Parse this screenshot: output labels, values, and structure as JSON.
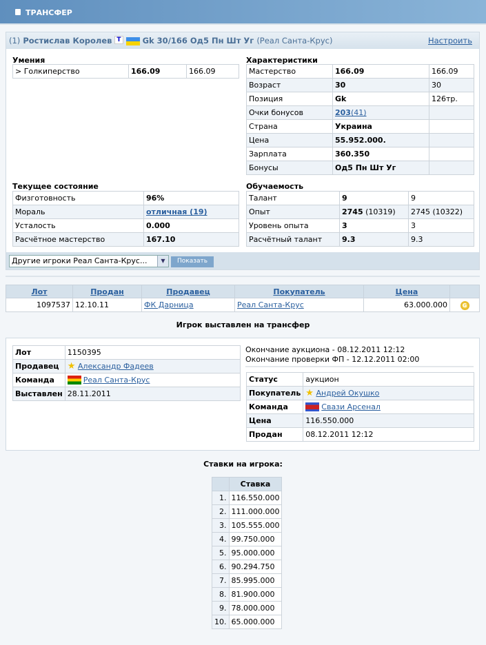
{
  "header": {
    "title": "ТРАНСФЕР"
  },
  "player": {
    "prefix": "(1)",
    "name": "Ростислав Королев",
    "badge": "T",
    "info": "Gk 30/166 Од5 Пн Шт Уг",
    "team": "(Реал Санта-Крус)",
    "configure": "Настроить"
  },
  "skills": {
    "title": "Умения",
    "rows": [
      [
        "> Голкиперство",
        "166.09",
        "166.09"
      ]
    ]
  },
  "chars": {
    "title": "Характеристики",
    "rows": [
      [
        "Мастерство",
        "166.09",
        "166.09"
      ],
      [
        "Возраст",
        "30",
        "30"
      ],
      [
        "Позиция",
        "Gk",
        "126тр."
      ],
      [
        "Очки бонусов",
        "203",
        "(41)"
      ],
      [
        "Страна",
        "Украина",
        ""
      ],
      [
        "Цена",
        "55.952.000.",
        ""
      ],
      [
        "Зарплата",
        "360.350",
        ""
      ],
      [
        "Бонусы",
        "Од5 Пн Шт Уг",
        ""
      ]
    ]
  },
  "state": {
    "title": "Текущее состояние",
    "rows": [
      [
        "Физготовность",
        "96%"
      ],
      [
        "Мораль",
        "отличная (19)"
      ],
      [
        "Усталость",
        "0.000"
      ],
      [
        "Расчётное мастерство",
        "167.10"
      ]
    ]
  },
  "learn": {
    "title": "Обучаемость",
    "rows": [
      [
        "Талант",
        "9",
        "",
        "9"
      ],
      [
        "Опыт",
        "2745",
        " (10319)",
        "2745 (10322)"
      ],
      [
        "Уровень опыта",
        "3",
        "",
        "3"
      ],
      [
        "Расчётный талант",
        "9.3",
        "",
        "9.3"
      ]
    ]
  },
  "select": {
    "value": "Другие игроки Реал Санта-Крус...",
    "button": "Показать"
  },
  "history": {
    "headers": [
      "Лот",
      "Продан",
      "Продавец",
      "Покупатель",
      "Цена"
    ],
    "rows": [
      [
        "1097537",
        "12.10.11",
        "ФК Дарница",
        "Реал Санта-Крус",
        "63.000.000"
      ]
    ],
    "coin": "G"
  },
  "listed_title": "Игрок выставлен на трансфер",
  "lot": {
    "rows": [
      [
        "Лот",
        "1150395"
      ],
      [
        "Продавец",
        "Александр Фадеев"
      ],
      [
        "Команда",
        "Реал Санта-Крус"
      ],
      [
        "Выставлен",
        "28.11.2011"
      ]
    ]
  },
  "auction": {
    "end": "Окончание аукциона - 08.12.2011 12:12",
    "check": "Окончание проверки ФП - 12.12.2011 02:00",
    "rows": [
      [
        "Статус",
        "аукцион"
      ],
      [
        "Покупатель",
        "Андрей Окушко"
      ],
      [
        "Команда",
        "Свази Арсенал"
      ],
      [
        "Цена",
        "116.550.000"
      ],
      [
        "Продан",
        "08.12.2011 12:12"
      ]
    ]
  },
  "bids": {
    "title": "Ставки на игрока:",
    "header": "Ставка",
    "rows": [
      [
        "1.",
        "116.550.000"
      ],
      [
        "2.",
        "111.000.000"
      ],
      [
        "3.",
        "105.555.000"
      ],
      [
        "4.",
        "99.750.000"
      ],
      [
        "5.",
        "95.000.000"
      ],
      [
        "6.",
        "90.294.750"
      ],
      [
        "7.",
        "85.995.000"
      ],
      [
        "8.",
        "81.900.000"
      ],
      [
        "9.",
        "78.000.000"
      ],
      [
        "10.",
        "65.000.000"
      ]
    ]
  }
}
